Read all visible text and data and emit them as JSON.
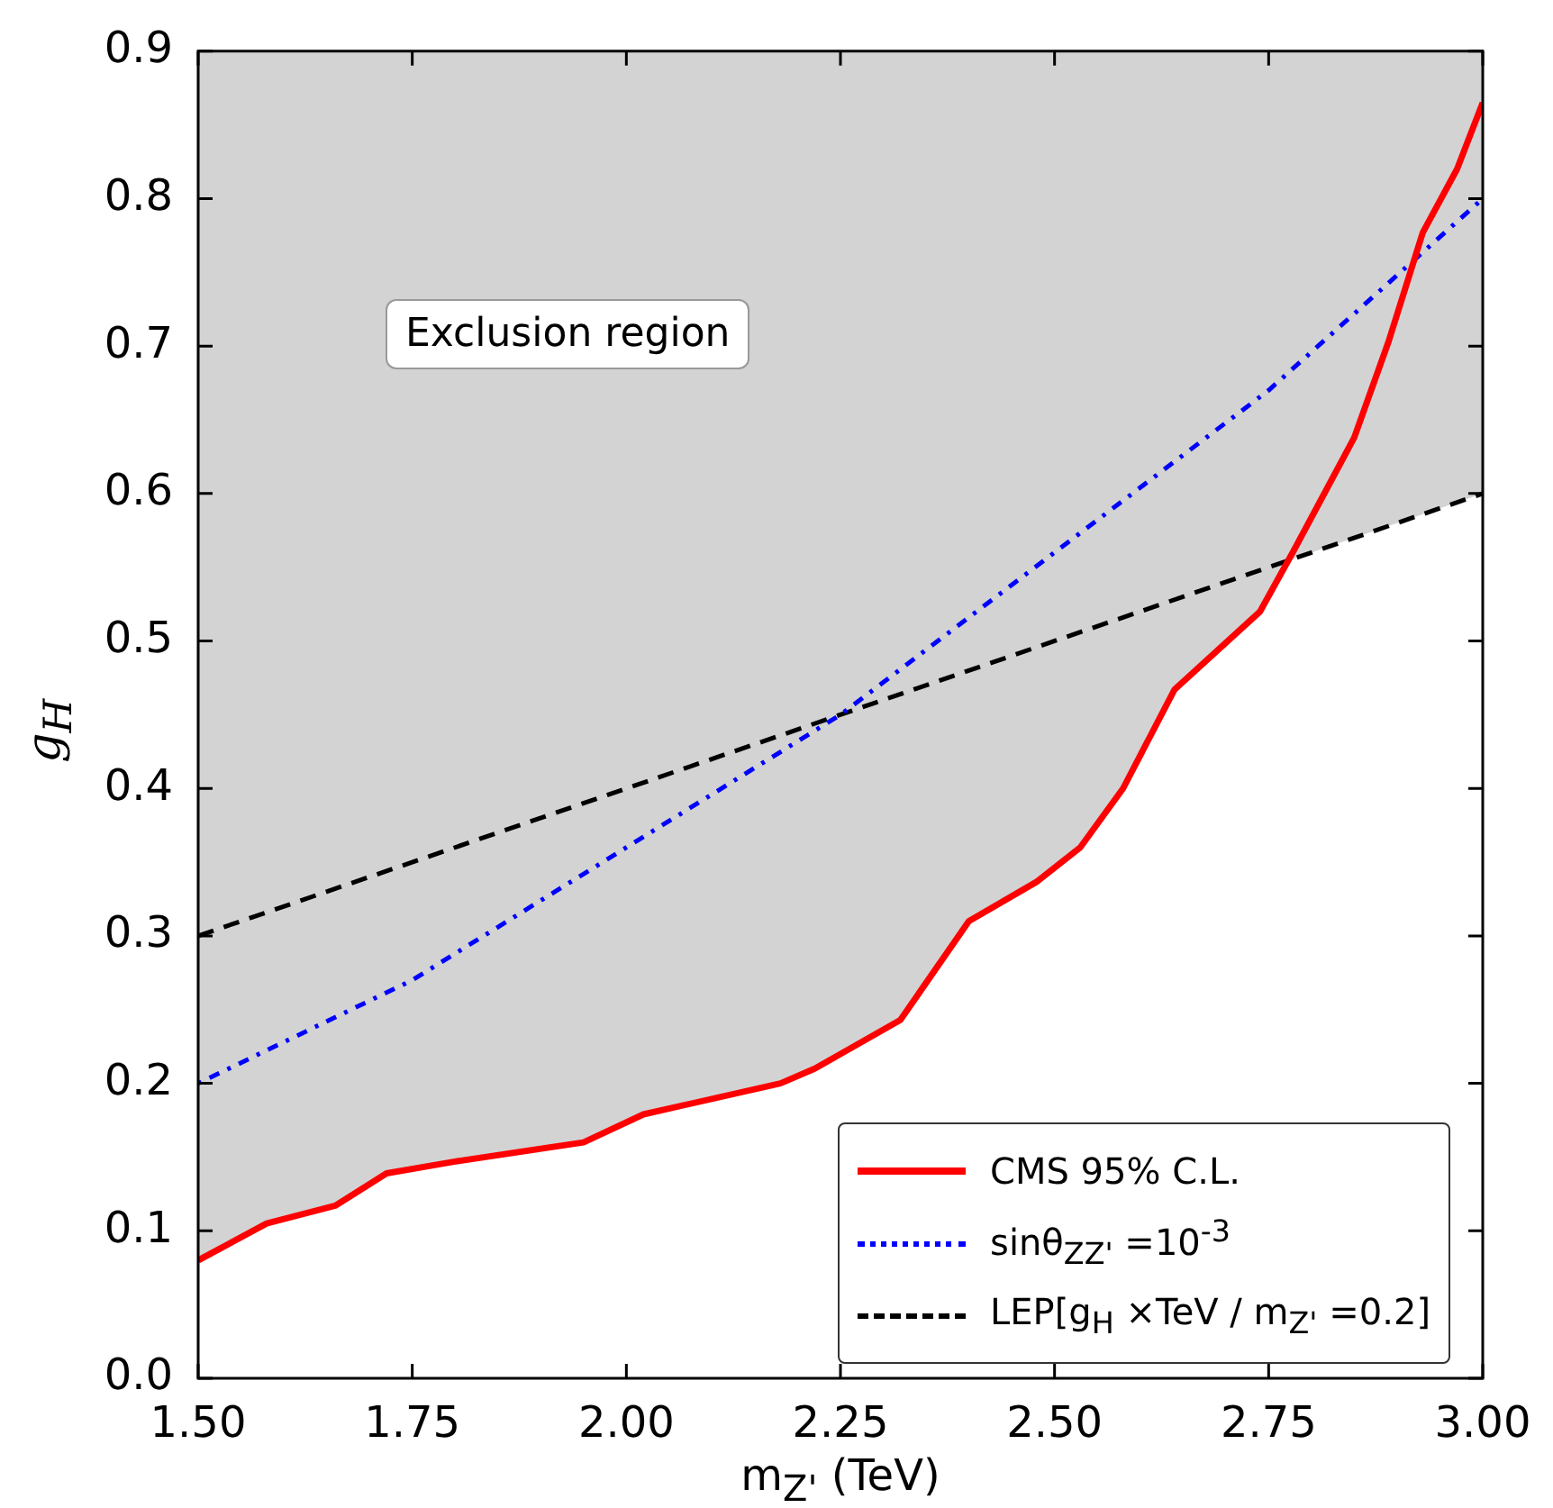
{
  "chart_data": {
    "type": "line",
    "xlabel": "m$_{Z'}$ (TeV)",
    "ylabel": "g$_{H}$",
    "xlim": [
      1.5,
      3.0
    ],
    "ylim": [
      0.0,
      0.9
    ],
    "xticks": [
      {
        "value": 1.5,
        "label": "1.50"
      },
      {
        "value": 1.75,
        "label": "1.75"
      },
      {
        "value": 2.0,
        "label": "2.00"
      },
      {
        "value": 2.25,
        "label": "2.25"
      },
      {
        "value": 2.5,
        "label": "2.50"
      },
      {
        "value": 2.75,
        "label": "2.75"
      },
      {
        "value": 3.0,
        "label": "3.00"
      }
    ],
    "yticks": [
      {
        "value": 0,
        "label": "0.0"
      },
      0.1,
      0.2,
      0.3,
      0.4,
      0.5,
      0.6,
      0.7,
      0.8,
      0.9
    ],
    "legend": "bottom right",
    "bands": [
      {
        "axis": "y",
        "from": 0.0,
        "to": 0.9,
        "color": "#d3d3d3"
      }
    ],
    "annotations": [
      "Exclusion region"
    ],
    "series": [
      {
        "type": "area",
        "color": "#ffffff",
        "x": [
          1.5,
          1.58,
          1.66,
          1.72,
          1.8,
          1.95,
          2.02,
          2.18,
          2.22,
          2.32,
          2.4,
          2.48,
          2.53,
          2.58,
          2.64,
          2.74,
          2.77,
          2.85,
          2.89,
          2.93,
          2.97,
          3.0
        ],
        "values": [
          0.08,
          0.105,
          0.117,
          0.139,
          0.147,
          0.16,
          0.179,
          0.2,
          0.21,
          0.243,
          0.31,
          0.337,
          0.36,
          0.4,
          0.467,
          0.52,
          0.554,
          0.57,
          0.578,
          0.586,
          0.594,
          0.6
        ]
      },
      {
        "name": "CMS 95% C.L.",
        "color": "#ff0000",
        "line_style": "solid",
        "x": [
          1.5,
          1.58,
          1.66,
          1.72,
          1.8,
          1.95,
          2.02,
          2.18,
          2.22,
          2.32,
          2.4,
          2.48,
          2.53,
          2.58,
          2.64,
          2.74,
          2.78,
          2.85,
          2.89,
          2.93,
          2.97,
          3.0
        ],
        "values": [
          0.08,
          0.105,
          0.117,
          0.139,
          0.147,
          0.16,
          0.179,
          0.2,
          0.21,
          0.243,
          0.31,
          0.337,
          0.36,
          0.4,
          0.467,
          0.52,
          0.562,
          0.638,
          0.703,
          0.777,
          0.82,
          0.865
        ]
      },
      {
        "name": "sinθ$_{ZZ'}$ =10$^{-3}$",
        "color": "#0000ff",
        "line_style": "dotted",
        "x": [
          1.5,
          1.75,
          2.0,
          2.25,
          2.5,
          2.75,
          3.0
        ],
        "values": [
          0.2,
          0.27,
          0.36,
          0.45,
          0.56,
          0.67,
          0.8
        ]
      },
      {
        "name": "LEP[g$_{H}$ ×TeV / m$_{Z'}$ =0.2]",
        "color": "#000000",
        "line_style": "dashed",
        "x": [
          1.5,
          3.0
        ],
        "values": [
          0.3,
          0.6
        ]
      }
    ]
  }
}
